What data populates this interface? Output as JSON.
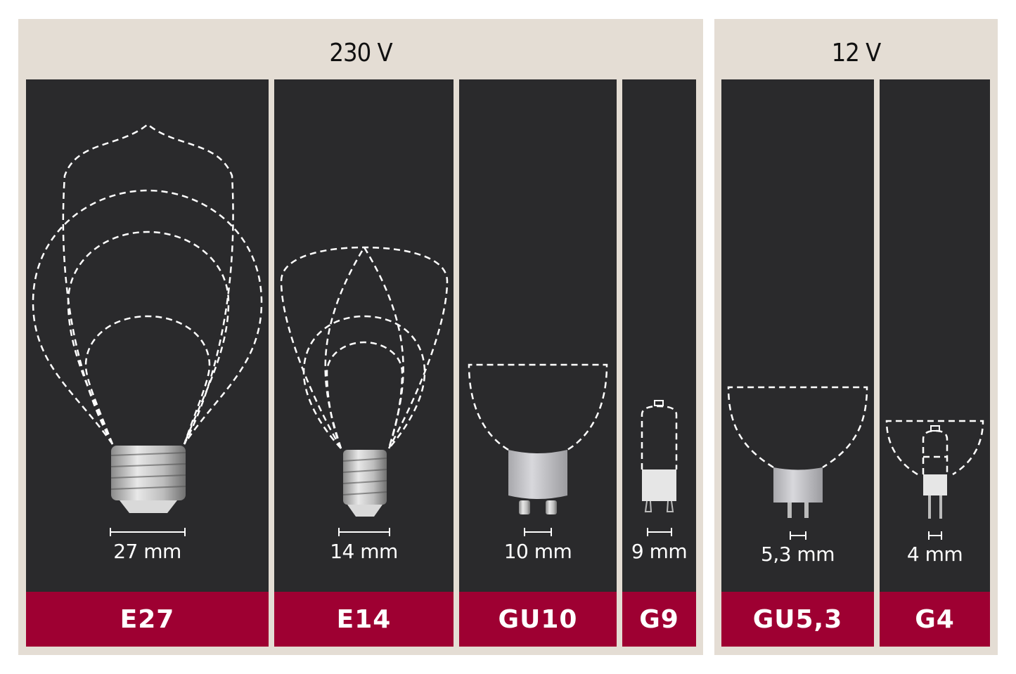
{
  "groups": [
    {
      "voltage": "230 V",
      "sockets": [
        {
          "name": "E27",
          "size": "27 mm"
        },
        {
          "name": "E14",
          "size": "14 mm"
        },
        {
          "name": "GU10",
          "size": "10 mm"
        },
        {
          "name": "G9",
          "size": "9 mm"
        }
      ]
    },
    {
      "voltage": "12 V",
      "sockets": [
        {
          "name": "GU5,3",
          "size": "5,3 mm"
        },
        {
          "name": "G4",
          "size": "4 mm"
        }
      ]
    }
  ],
  "colors": {
    "background": "#e4ddd4",
    "panel": "#2a2a2c",
    "label": "#9e0032",
    "outline": "#ffffff"
  }
}
